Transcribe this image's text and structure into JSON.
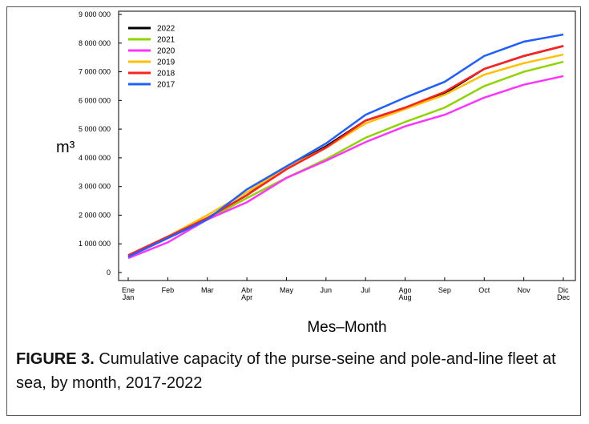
{
  "chart_data": {
    "type": "line",
    "ylabel": "m³",
    "xlabel": "Mes–Month",
    "categories": [
      "Ene\nJan",
      "Feb",
      "Mar",
      "Abr\nApr",
      "May",
      "Jun",
      "Jul",
      "Ago\nAug",
      "Sep",
      "Oct",
      "Nov",
      "Dic\nDec"
    ],
    "series": [
      {
        "name": "2022",
        "color": "#000000",
        "values": [
          600000,
          1250000,
          1900000,
          2700000,
          3650000,
          4400000,
          5300000,
          5750000,
          6250000,
          7100000,
          7550000,
          7900000
        ]
      },
      {
        "name": "2021",
        "color": "#8fd400",
        "values": [
          550000,
          1200000,
          1850000,
          2600000,
          3300000,
          3950000,
          4700000,
          5250000,
          5750000,
          6500000,
          7000000,
          7350000
        ]
      },
      {
        "name": "2020",
        "color": "#ff33ff",
        "values": [
          500000,
          1050000,
          1850000,
          2450000,
          3300000,
          3900000,
          4550000,
          5100000,
          5500000,
          6100000,
          6550000,
          6850000
        ]
      },
      {
        "name": "2019",
        "color": "#ffc000",
        "values": [
          600000,
          1250000,
          2000000,
          2800000,
          3650000,
          4350000,
          5200000,
          5700000,
          6200000,
          6900000,
          7300000,
          7600000
        ]
      },
      {
        "name": "2018",
        "color": "#ff2020",
        "values": [
          600000,
          1250000,
          1900000,
          2700000,
          3600000,
          4350000,
          5300000,
          5750000,
          6300000,
          7100000,
          7550000,
          7900000
        ]
      },
      {
        "name": "2017",
        "color": "#1f5fff",
        "values": [
          550000,
          1200000,
          1850000,
          2900000,
          3700000,
          4500000,
          5500000,
          6100000,
          6650000,
          7550000,
          8050000,
          8300000
        ]
      }
    ],
    "ylim": [
      0,
      9000000
    ],
    "yticks": [
      0,
      {
        "value": 1000000,
        "label": "1 000 000"
      },
      {
        "value": 2000000,
        "label": "2 000 000"
      },
      {
        "value": 3000000,
        "label": "3 000 000"
      },
      {
        "value": 4000000,
        "label": "4 000 000"
      },
      {
        "value": 5000000,
        "label": "5 000 000"
      },
      {
        "value": 6000000,
        "label": "6 000 000"
      },
      {
        "value": 7000000,
        "label": "7 000 000"
      },
      {
        "value": 8000000,
        "label": "8 000 000"
      },
      {
        "value": 9000000,
        "label": "9 000 000"
      }
    ],
    "legend": "upper-left",
    "grid": false
  },
  "caption": {
    "label": "FIGURE 3.",
    "text": "Cumulative capacity of the purse-seine and pole-and-line fleet at sea, by month, 2017-2022"
  }
}
